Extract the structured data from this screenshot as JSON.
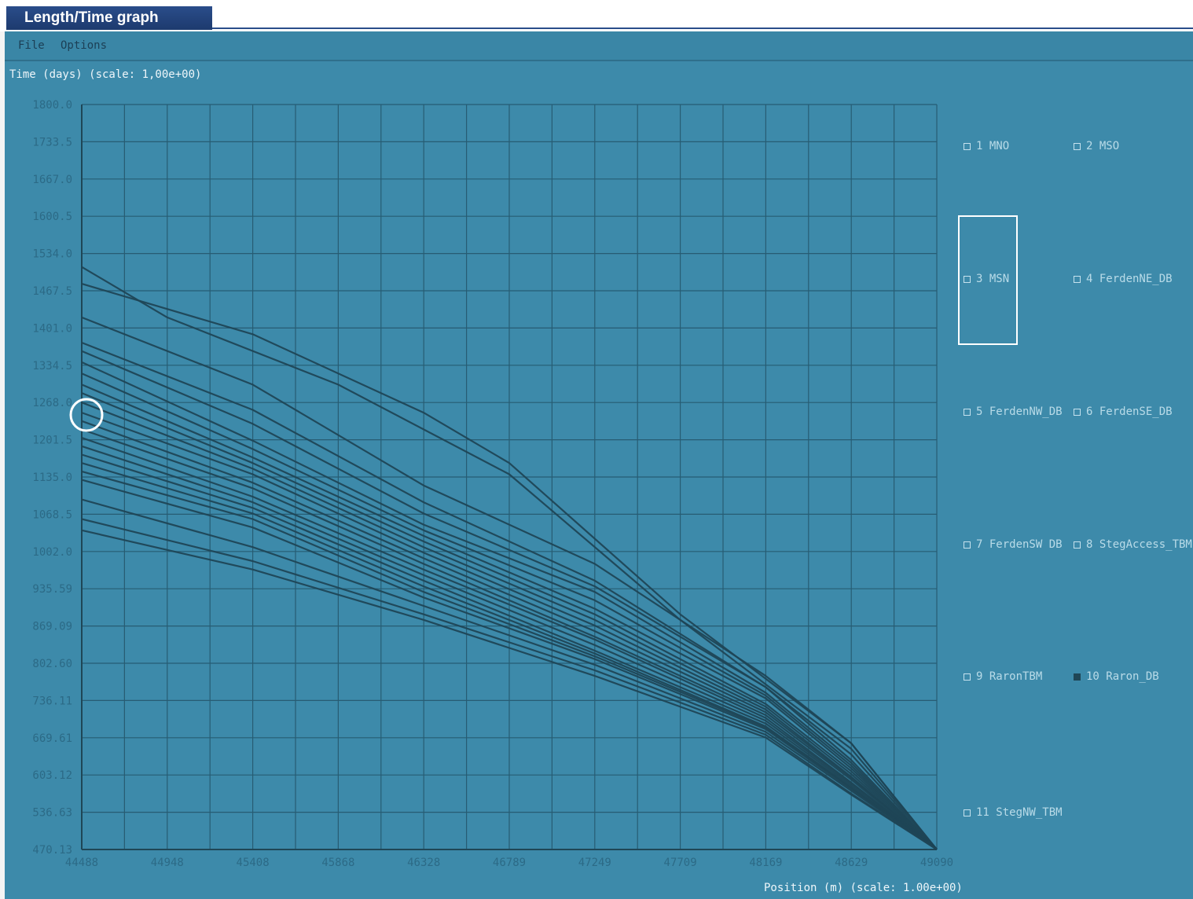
{
  "window": {
    "title": "Length/Time graph"
  },
  "menu": {
    "file": "File",
    "options": "Options"
  },
  "chart_data": {
    "type": "line",
    "ylabel": "Time (days) (scale: 1,00e+00)",
    "xlabel": "Position (m) (scale: 1.00e+00)",
    "xlim": [
      44488,
      49090
    ],
    "ylim": [
      470.13,
      1800.0
    ],
    "x_ticks": [
      "44488",
      "44948",
      "45408",
      "45868",
      "46328",
      "46789",
      "47249",
      "47709",
      "48169",
      "48629",
      "49090"
    ],
    "y_ticks": [
      "1800.0",
      "1733.5",
      "1667.0",
      "1600.5",
      "1534.0",
      "1467.5",
      "1401.0",
      "1334.5",
      "1268.0",
      "1201.5",
      "1135.0",
      "1068.5",
      "1002.0",
      "935.59",
      "869.09",
      "802.60",
      "736.11",
      "669.61",
      "603.12",
      "536.63",
      "470.13"
    ],
    "grid": true,
    "line_color": "#1f4656",
    "end_point": {
      "x": 49090,
      "y": 470.13
    },
    "series": [
      {
        "x": [
          44488,
          44948,
          45868,
          46789,
          47709,
          48629,
          49090
        ],
        "y": [
          1510,
          1420,
          1300,
          1140,
          880,
          650,
          470.13
        ]
      },
      {
        "x": [
          44488,
          45408,
          46328,
          46789,
          47709,
          48629,
          49090
        ],
        "y": [
          1480,
          1390,
          1250,
          1160,
          890,
          660,
          470.13
        ]
      },
      {
        "x": [
          44488,
          45408,
          46328,
          47249,
          48169,
          48629,
          49090
        ],
        "y": [
          1420,
          1300,
          1120,
          980,
          780,
          660,
          470.13
        ]
      },
      {
        "x": [
          44488,
          45408,
          46328,
          47249,
          48169,
          48629,
          49090
        ],
        "y": [
          1375,
          1255,
          1090,
          950,
          760,
          630,
          470.13
        ]
      },
      {
        "x": [
          44488,
          45408,
          46328,
          47249,
          48169,
          48629,
          49090
        ],
        "y": [
          1360,
          1230,
          1070,
          940,
          760,
          640,
          470.13
        ]
      },
      {
        "x": [
          44488,
          45408,
          46328,
          47249,
          48169,
          48629,
          49090
        ],
        "y": [
          1340,
          1200,
          1050,
          930,
          750,
          625,
          470.13
        ]
      },
      {
        "x": [
          44488,
          45408,
          46328,
          47249,
          48169,
          48629,
          49090
        ],
        "y": [
          1320,
          1185,
          1040,
          915,
          745,
          620,
          470.13
        ]
      },
      {
        "x": [
          44488,
          45408,
          46328,
          47249,
          48169,
          48629,
          49090
        ],
        "y": [
          1300,
          1170,
          1030,
          900,
          740,
          615,
          470.13
        ]
      },
      {
        "x": [
          44488,
          45408,
          46328,
          47249,
          48169,
          48629,
          49090
        ],
        "y": [
          1285,
          1160,
          1020,
          890,
          730,
          610,
          470.13
        ]
      },
      {
        "x": [
          44488,
          45408,
          46328,
          47249,
          48169,
          48629,
          49090
        ],
        "y": [
          1268,
          1150,
          1010,
          880,
          725,
          605,
          470.13
        ]
      },
      {
        "x": [
          44488,
          45408,
          46328,
          47249,
          48169,
          48629,
          49090
        ],
        "y": [
          1250,
          1140,
          1000,
          870,
          720,
          600,
          470.13
        ]
      },
      {
        "x": [
          44488,
          45408,
          46328,
          47249,
          48169,
          48629,
          49090
        ],
        "y": [
          1235,
          1125,
          990,
          860,
          715,
          598,
          470.13
        ]
      },
      {
        "x": [
          44488,
          45408,
          46328,
          47249,
          48169,
          48629,
          49090
        ],
        "y": [
          1220,
          1115,
          980,
          850,
          710,
          595,
          470.13
        ]
      },
      {
        "x": [
          44488,
          45408,
          46328,
          47249,
          48169,
          48629,
          49090
        ],
        "y": [
          1205,
          1100,
          970,
          845,
          705,
          590,
          470.13
        ]
      },
      {
        "x": [
          44488,
          45408,
          46328,
          47249,
          48169,
          48629,
          49090
        ],
        "y": [
          1190,
          1090,
          960,
          835,
          700,
          588,
          470.13
        ]
      },
      {
        "x": [
          44488,
          45408,
          46328,
          47249,
          48169,
          48629,
          49090
        ],
        "y": [
          1175,
          1080,
          950,
          825,
          695,
          585,
          470.13
        ]
      },
      {
        "x": [
          44488,
          45408,
          46328,
          47249,
          48169,
          48629,
          49090
        ],
        "y": [
          1160,
          1070,
          940,
          820,
          690,
          582,
          470.13
        ]
      },
      {
        "x": [
          44488,
          45408,
          46328,
          47249,
          48169,
          48629,
          49090
        ],
        "y": [
          1145,
          1060,
          930,
          815,
          688,
          580,
          470.13
        ]
      },
      {
        "x": [
          44488,
          45408,
          46328,
          47249,
          48169,
          48629,
          49090
        ],
        "y": [
          1130,
          1045,
          920,
          810,
          685,
          578,
          470.13
        ]
      },
      {
        "x": [
          44488,
          45408,
          46328,
          47249,
          48169,
          48629,
          49090
        ],
        "y": [
          1095,
          1010,
          905,
          800,
          680,
          575,
          470.13
        ]
      },
      {
        "x": [
          44488,
          45408,
          46328,
          47249,
          48169,
          48629,
          49090
        ],
        "y": [
          1060,
          985,
          890,
          790,
          675,
          570,
          470.13
        ]
      },
      {
        "x": [
          44488,
          45408,
          46328,
          47249,
          48169,
          48629,
          49090
        ],
        "y": [
          1040,
          970,
          880,
          780,
          670,
          568,
          470.13
        ]
      }
    ]
  },
  "legend": [
    {
      "label": "1 MNO",
      "checked": false
    },
    {
      "label": "2 MSO",
      "checked": false
    },
    {
      "label": "3 MSN",
      "checked": false
    },
    {
      "label": "4 FerdenNE_DB",
      "checked": false
    },
    {
      "label": "5 FerdenNW_DB",
      "checked": false
    },
    {
      "label": "6 FerdenSE_DB",
      "checked": false
    },
    {
      "label": "7 FerdenSW DB",
      "checked": false
    },
    {
      "label": "8 StegAccess_TBM",
      "checked": false
    },
    {
      "label": "9 RaronTBM",
      "checked": false
    },
    {
      "label": "10 Raron_DB",
      "checked": true
    },
    {
      "label": "11 StegNW_TBM",
      "checked": false
    }
  ]
}
